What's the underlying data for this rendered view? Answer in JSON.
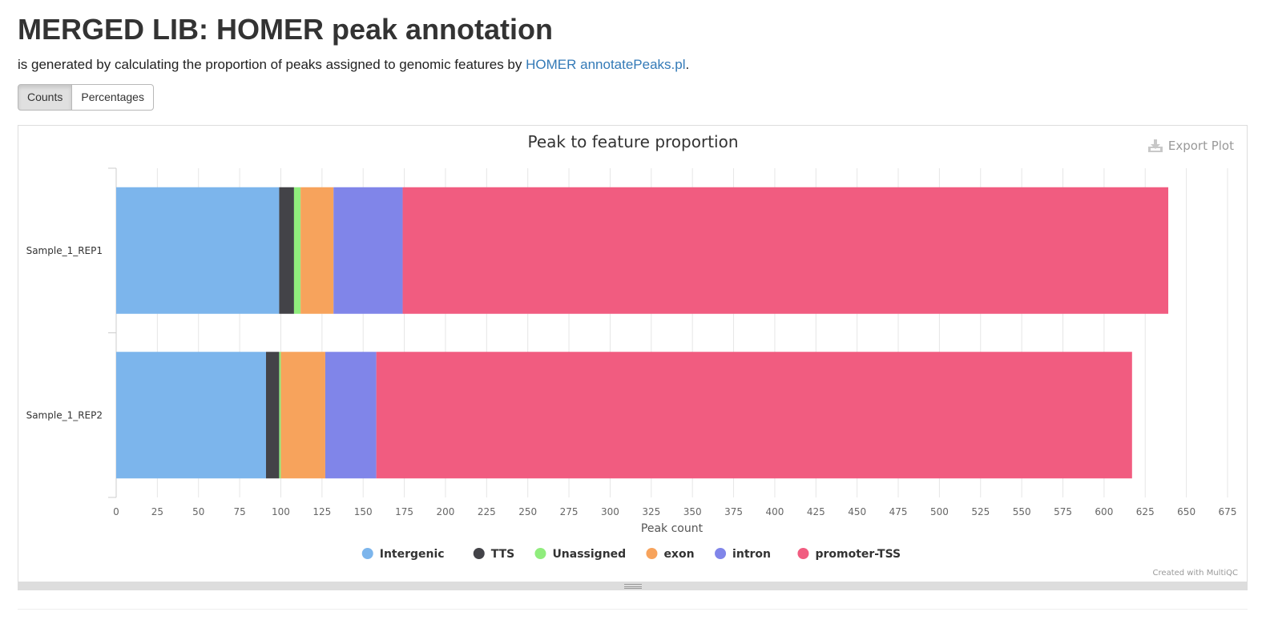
{
  "header": {
    "title": "MERGED LIB: HOMER peak annotation",
    "description_prefix": "is generated by calculating the proportion of peaks assigned to genomic features by ",
    "link_text": "HOMER annotatePeaks.pl",
    "description_suffix": "."
  },
  "toggles": {
    "counts_label": "Counts",
    "percentages_label": "Percentages",
    "active": "Counts"
  },
  "plot": {
    "export_label": "Export Plot",
    "credit": "Created with MultiQC"
  },
  "chart_data": {
    "type": "bar",
    "orientation": "horizontal",
    "stacked": true,
    "title": "Peak to feature proportion",
    "xlabel": "Peak count",
    "ylabel": "",
    "xlim": [
      0,
      675
    ],
    "xticks": [
      0,
      25,
      50,
      75,
      100,
      125,
      150,
      175,
      200,
      225,
      250,
      275,
      300,
      325,
      350,
      375,
      400,
      425,
      450,
      475,
      500,
      525,
      550,
      575,
      600,
      625,
      650,
      675
    ],
    "grid": true,
    "legend_position": "bottom-center",
    "categories": [
      "Sample_1_REP1",
      "Sample_1_REP2"
    ],
    "series": [
      {
        "name": "Intergenic",
        "color": "#7cb5ec",
        "values": [
          99,
          91
        ]
      },
      {
        "name": "TTS",
        "color": "#434348",
        "values": [
          9,
          8
        ]
      },
      {
        "name": "Unassigned",
        "color": "#90ed7d",
        "values": [
          4,
          1
        ]
      },
      {
        "name": "exon",
        "color": "#f7a35c",
        "values": [
          20,
          27
        ]
      },
      {
        "name": "intron",
        "color": "#8085e9",
        "values": [
          42,
          31
        ]
      },
      {
        "name": "promoter-TSS",
        "color": "#f15c80",
        "values": [
          465,
          459
        ]
      }
    ]
  }
}
